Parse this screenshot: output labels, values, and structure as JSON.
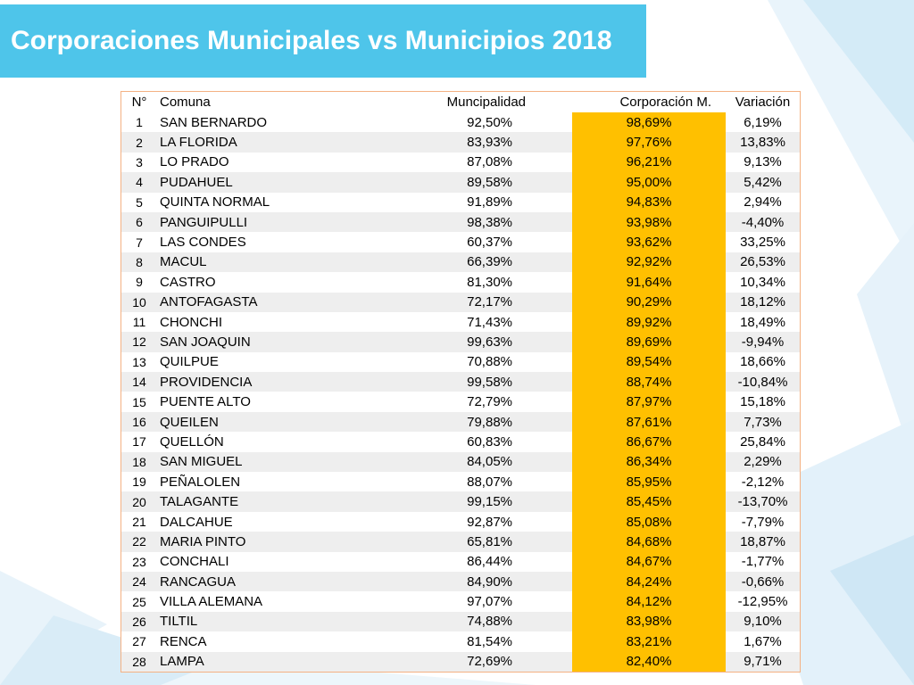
{
  "slide": {
    "title": "Corporaciones Municipales vs Municipios 2018",
    "accent_color": "#4ec5ea",
    "highlight_color": "#ffc000"
  },
  "table": {
    "headers": [
      "N°",
      "Comuna",
      "Muncipalidad",
      "Corporación M.",
      "Variación"
    ],
    "rows": [
      [
        "1",
        "SAN BERNARDO",
        "92,50%",
        "98,69%",
        "6,19%"
      ],
      [
        "2",
        "LA FLORIDA",
        "83,93%",
        "97,76%",
        "13,83%"
      ],
      [
        "3",
        "LO PRADO",
        "87,08%",
        "96,21%",
        "9,13%"
      ],
      [
        "4",
        "PUDAHUEL",
        "89,58%",
        "95,00%",
        "5,42%"
      ],
      [
        "5",
        "QUINTA NORMAL",
        "91,89%",
        "94,83%",
        "2,94%"
      ],
      [
        "6",
        "PANGUIPULLI",
        "98,38%",
        "93,98%",
        "-4,40%"
      ],
      [
        "7",
        "LAS CONDES",
        "60,37%",
        "93,62%",
        "33,25%"
      ],
      [
        "8",
        "MACUL",
        "66,39%",
        "92,92%",
        "26,53%"
      ],
      [
        "9",
        "CASTRO",
        "81,30%",
        "91,64%",
        "10,34%"
      ],
      [
        "10",
        "ANTOFAGASTA",
        "72,17%",
        "90,29%",
        "18,12%"
      ],
      [
        "11",
        "CHONCHI",
        "71,43%",
        "89,92%",
        "18,49%"
      ],
      [
        "12",
        "SAN JOAQUIN",
        "99,63%",
        "89,69%",
        "-9,94%"
      ],
      [
        "13",
        "QUILPUE",
        "70,88%",
        "89,54%",
        "18,66%"
      ],
      [
        "14",
        "PROVIDENCIA",
        "99,58%",
        "88,74%",
        "-10,84%"
      ],
      [
        "15",
        "PUENTE ALTO",
        "72,79%",
        "87,97%",
        "15,18%"
      ],
      [
        "16",
        "QUEILEN",
        "79,88%",
        "87,61%",
        "7,73%"
      ],
      [
        "17",
        "QUELLÓN",
        "60,83%",
        "86,67%",
        "25,84%"
      ],
      [
        "18",
        "SAN MIGUEL",
        "84,05%",
        "86,34%",
        "2,29%"
      ],
      [
        "19",
        "PEÑALOLEN",
        "88,07%",
        "85,95%",
        "-2,12%"
      ],
      [
        "20",
        "TALAGANTE",
        "99,15%",
        "85,45%",
        "-13,70%"
      ],
      [
        "21",
        "DALCAHUE",
        "92,87%",
        "85,08%",
        "-7,79%"
      ],
      [
        "22",
        "MARIA PINTO",
        "65,81%",
        "84,68%",
        "18,87%"
      ],
      [
        "23",
        "CONCHALI",
        "86,44%",
        "84,67%",
        "-1,77%"
      ],
      [
        "24",
        "RANCAGUA",
        "84,90%",
        "84,24%",
        "-0,66%"
      ],
      [
        "25",
        "VILLA ALEMANA",
        "97,07%",
        "84,12%",
        "-12,95%"
      ],
      [
        "26",
        "TILTIL",
        "74,88%",
        "83,98%",
        "9,10%"
      ],
      [
        "27",
        "RENCA",
        "81,54%",
        "83,21%",
        "1,67%"
      ],
      [
        "28",
        "LAMPA",
        "72,69%",
        "82,40%",
        "9,71%"
      ]
    ]
  }
}
